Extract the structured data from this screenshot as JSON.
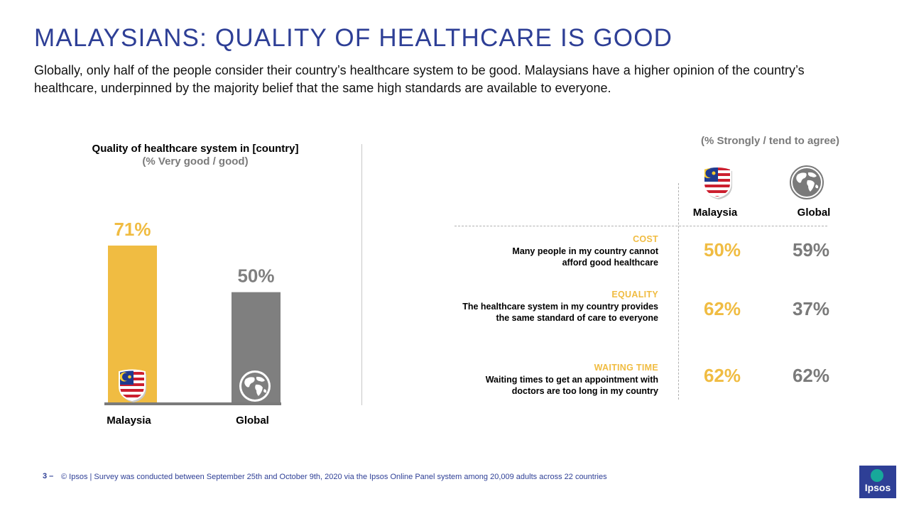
{
  "page": {
    "title": "MALAYSIANS: QUALITY OF HEALTHCARE IS GOOD",
    "subtitle": "Globally, only half of the people consider their country’s healthcare system to be good. Malaysians have a higher opinion of the country’s healthcare, underpinned by the majority belief that the same high standards are available to everyone."
  },
  "chart_data": {
    "type": "bar",
    "title": "Quality of healthcare system in [country]",
    "subtitle": "(% Very good / good)",
    "categories": [
      "Malaysia",
      "Global"
    ],
    "values": [
      71,
      50
    ],
    "value_labels": [
      "71%",
      "50%"
    ],
    "ylim": [
      0,
      71
    ],
    "colors": [
      "#f0bc42",
      "#7f7f7f"
    ],
    "icons": [
      "malaysia-flag-icon",
      "globe-icon"
    ],
    "grid": false
  },
  "agreement": {
    "note": "(% Strongly / tend to agree)",
    "columns": [
      {
        "label": "Malaysia",
        "icon": "malaysia-flag-icon",
        "color": "#f0bc42"
      },
      {
        "label": "Global",
        "icon": "globe-icon",
        "color": "#7a7a7a"
      }
    ],
    "rows": [
      {
        "category": "COST",
        "description": [
          "Many people in my country cannot",
          "afford good healthcare"
        ],
        "malaysia": "50%",
        "global": "59%"
      },
      {
        "category": "EQUALITY",
        "description": [
          "The healthcare system in my country provides",
          "the same standard of care to everyone"
        ],
        "malaysia": "62%",
        "global": "37%"
      },
      {
        "category": "WAITING TIME",
        "description": [
          "Waiting times to get an appointment with",
          "doctors are too long in my country"
        ],
        "malaysia": "62%",
        "global": "62%"
      }
    ]
  },
  "footer": {
    "page_number": "3 –",
    "note": "© Ipsos | Survey was conducted between September 25th and October 9th, 2020 via the Ipsos Online Panel system among 20,009 adults across 22 countries",
    "logo_text": "Ipsos"
  }
}
